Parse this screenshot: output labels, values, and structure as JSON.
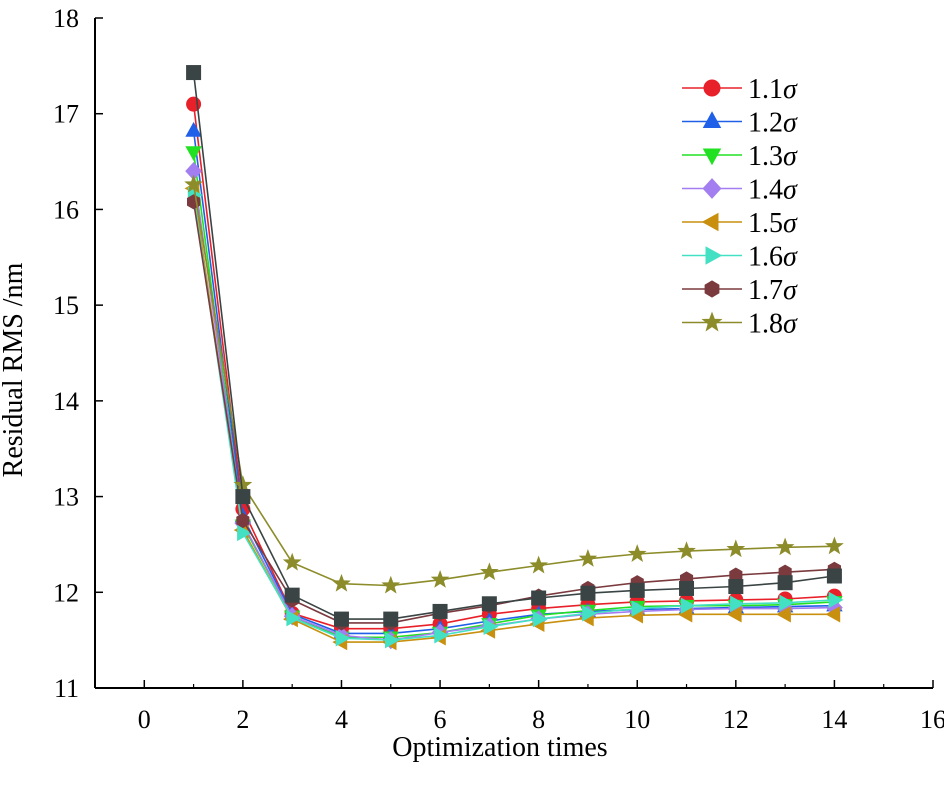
{
  "chart_data": {
    "type": "line",
    "title": "",
    "xlabel": "Optimization times",
    "ylabel": "Residual RMS /nm",
    "xlim": [
      -1,
      16
    ],
    "ylim": [
      11,
      18
    ],
    "xticks": [
      0,
      2,
      4,
      6,
      8,
      10,
      12,
      14,
      16
    ],
    "yticks": [
      11,
      12,
      13,
      14,
      15,
      16,
      17,
      18
    ],
    "legend_position": "top-right",
    "x": [
      1,
      2,
      3,
      4,
      5,
      6,
      7,
      8,
      9,
      10,
      11,
      12,
      13,
      14
    ],
    "series": [
      {
        "name": "1.1",
        "symbol": "σ",
        "color": "#e8202a",
        "marker": "circle",
        "values": [
          17.1,
          12.87,
          11.78,
          11.62,
          11.62,
          11.67,
          11.77,
          11.83,
          11.87,
          11.9,
          11.91,
          11.92,
          11.93,
          11.96
        ]
      },
      {
        "name": "1.2",
        "symbol": "σ",
        "color": "#2060e8",
        "marker": "triangle-up",
        "values": [
          16.82,
          12.79,
          11.77,
          11.57,
          11.57,
          11.62,
          11.7,
          11.77,
          11.8,
          11.82,
          11.83,
          11.84,
          11.85,
          11.86
        ]
      },
      {
        "name": "1.3",
        "symbol": "σ",
        "color": "#22e022",
        "marker": "triangle-down",
        "values": [
          16.6,
          12.7,
          11.75,
          11.53,
          11.53,
          11.58,
          11.67,
          11.76,
          11.81,
          11.85,
          11.86,
          11.86,
          11.87,
          11.9
        ]
      },
      {
        "name": "1.4",
        "symbol": "σ",
        "color": "#a27ef0",
        "marker": "diamond",
        "values": [
          16.4,
          12.72,
          11.75,
          11.55,
          11.5,
          11.58,
          11.65,
          11.72,
          11.77,
          11.8,
          11.82,
          11.83,
          11.83,
          11.84
        ]
      },
      {
        "name": "1.5",
        "symbol": "σ",
        "color": "#c8900e",
        "marker": "triangle-left",
        "values": [
          16.22,
          12.65,
          11.72,
          11.48,
          11.48,
          11.53,
          11.6,
          11.67,
          11.73,
          11.76,
          11.77,
          11.77,
          11.77,
          11.77
        ]
      },
      {
        "name": "1.6",
        "symbol": "σ",
        "color": "#44e0c4",
        "marker": "triangle-right",
        "values": [
          16.15,
          12.62,
          11.73,
          11.52,
          11.5,
          11.55,
          11.64,
          11.72,
          11.78,
          11.83,
          11.86,
          11.88,
          11.89,
          11.92
        ]
      },
      {
        "name": "1.7",
        "symbol": "σ",
        "color": "#7a3a3e",
        "marker": "hexagon",
        "values": [
          16.08,
          12.75,
          11.92,
          11.68,
          11.68,
          11.78,
          11.86,
          11.96,
          12.04,
          12.1,
          12.14,
          12.18,
          12.21,
          12.24
        ]
      },
      {
        "name": "1.8",
        "symbol": "σ",
        "color": "#8c8c2a",
        "marker": "star",
        "values": [
          16.26,
          13.12,
          12.31,
          12.09,
          12.07,
          12.13,
          12.21,
          12.28,
          12.35,
          12.4,
          12.43,
          12.45,
          12.47,
          12.48
        ]
      },
      {
        "name": "",
        "symbol": "",
        "color": "#3a4444",
        "marker": "square",
        "in_legend": false,
        "values": [
          17.43,
          13.0,
          11.97,
          11.72,
          11.72,
          11.8,
          11.88,
          11.94,
          11.99,
          12.02,
          12.04,
          12.06,
          12.1,
          12.17
        ]
      }
    ]
  }
}
